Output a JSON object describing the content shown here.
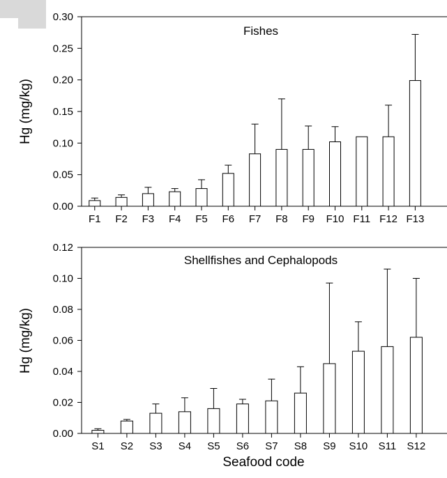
{
  "shared_xlabel": "Seafood code",
  "chart_data": [
    {
      "type": "bar",
      "title": "Fishes",
      "ylabel": "Hg (mg/kg)",
      "ylim": [
        0,
        0.3
      ],
      "yticks": [
        "0.00",
        "0.05",
        "0.10",
        "0.15",
        "0.20",
        "0.25",
        "0.30"
      ],
      "categories": [
        "F1",
        "F2",
        "F3",
        "F4",
        "F5",
        "F6",
        "F7",
        "F8",
        "F9",
        "F10",
        "F11",
        "F12",
        "F13"
      ],
      "values": [
        0.009,
        0.014,
        0.02,
        0.023,
        0.028,
        0.052,
        0.083,
        0.09,
        0.09,
        0.102,
        0.11,
        0.11,
        0.199
      ],
      "error_upper": [
        0.013,
        0.018,
        0.03,
        0.028,
        0.042,
        0.065,
        0.13,
        0.17,
        0.127,
        0.126,
        0.11,
        0.16,
        0.272
      ],
      "error_bars": "upper",
      "bar_fill": "#ffffff",
      "bar_stroke": "#000000",
      "grid": false
    },
    {
      "type": "bar",
      "title": "Shellfishes and Cephalopods",
      "ylabel": "Hg (mg/kg)",
      "xlabel": "Seafood code",
      "ylim": [
        0,
        0.12
      ],
      "yticks": [
        "0.00",
        "0.02",
        "0.04",
        "0.06",
        "0.08",
        "0.10",
        "0.12"
      ],
      "categories": [
        "S1",
        "S2",
        "S3",
        "S4",
        "S5",
        "S6",
        "S7",
        "S8",
        "S9",
        "S10",
        "S11",
        "S12"
      ],
      "values": [
        0.002,
        0.008,
        0.013,
        0.014,
        0.016,
        0.019,
        0.021,
        0.026,
        0.045,
        0.053,
        0.056,
        0.062
      ],
      "error_upper": [
        0.003,
        0.009,
        0.019,
        0.023,
        0.029,
        0.022,
        0.035,
        0.043,
        0.097,
        0.072,
        0.106,
        0.1
      ],
      "error_bars": "upper",
      "bar_fill": "#ffffff",
      "bar_stroke": "#000000",
      "grid": false
    }
  ]
}
